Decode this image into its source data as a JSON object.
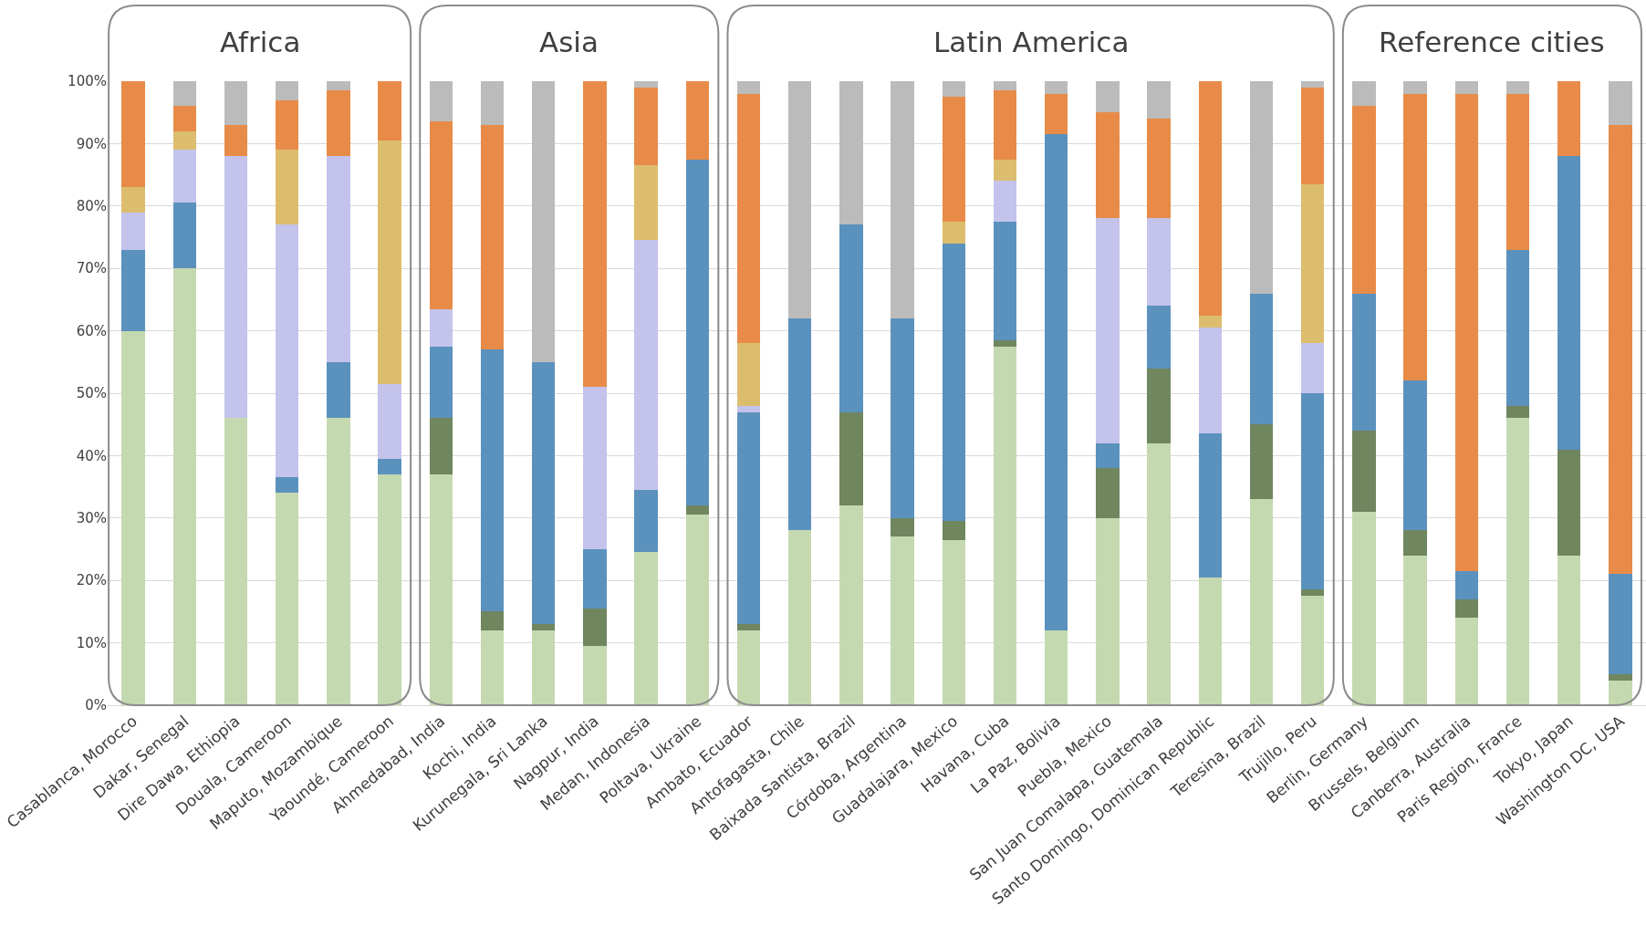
{
  "chart_data": {
    "type": "bar",
    "stacked": true,
    "categories": [
      "Casablanca, Morocco",
      "Dakar, Senegal",
      "Dire Dawa, Ethiopia",
      "Douala, Cameroon",
      "Maputo, Mozambique",
      "Yaoundé, Cameroon",
      "Ahmedabad, India",
      "Kochi, India",
      "Kurunegala, Sri Lanka",
      "Nagpur, India",
      "Medan, Indonesia",
      "Poltava, Ukraine",
      "Ambato, Ecuador",
      "Antofagasta, Chile",
      "Baixada Santista, Brazil",
      "Córdoba, Argentina",
      "Guadalajara, Mexico",
      "Havana, Cuba",
      "La Paz, Bolivia",
      "Puebla, Mexico",
      "San Juan Comalapa, Guatemala",
      "Santo Domingo, Dominican Republic",
      "Teresina, Brazil",
      "Trujillo, Peru",
      "Berlin, Germany",
      "Brussels, Belgium",
      "Canberra, Australia",
      "Paris Region, France",
      "Tokyo, Japan",
      "Washington DC, USA"
    ],
    "series": [
      {
        "color": "#c5d9b0",
        "values": [
          60,
          70,
          46,
          34,
          46,
          37,
          37,
          12,
          12,
          9.5,
          24.5,
          30.5,
          12,
          28,
          32,
          27,
          26.5,
          57.5,
          12,
          30,
          42,
          20.5,
          33,
          17.5,
          31,
          24,
          14,
          46,
          24,
          4
        ]
      },
      {
        "color": "#6f865f",
        "values": [
          0,
          0,
          0,
          0,
          0,
          0,
          9,
          3,
          1,
          6,
          0,
          1.5,
          1,
          0,
          15,
          3,
          3,
          1,
          0,
          8,
          12,
          0,
          12,
          1,
          13,
          4,
          3,
          2,
          17,
          1
        ]
      },
      {
        "color": "#5b91bd",
        "values": [
          13,
          10.5,
          0,
          2.5,
          9,
          2.5,
          11.5,
          42,
          42,
          9.5,
          10,
          55.5,
          34,
          34,
          30,
          32,
          44.5,
          19,
          79.5,
          4,
          10,
          23,
          21,
          31.5,
          22,
          24,
          4.5,
          25,
          47,
          16
        ]
      },
      {
        "color": "#c4c3ec",
        "values": [
          6,
          8.5,
          42,
          40.5,
          33,
          12,
          6,
          0,
          0,
          26,
          40,
          0,
          1,
          0,
          0,
          0,
          0,
          6.5,
          0,
          36,
          14,
          17,
          0,
          8,
          0,
          0,
          0,
          0,
          0,
          0
        ]
      },
      {
        "color": "#dcbd6e",
        "values": [
          4,
          3,
          0,
          12,
          0,
          39,
          0,
          0,
          0,
          0,
          12,
          0,
          10,
          0,
          0,
          0,
          3.5,
          3.5,
          0,
          0,
          0,
          2,
          0,
          25.5,
          0,
          0,
          0,
          0,
          0,
          0
        ]
      },
      {
        "color": "#e88b48",
        "values": [
          17,
          4,
          5,
          8,
          10.5,
          9.5,
          30,
          36,
          0,
          49,
          12.5,
          12.5,
          40,
          0,
          0,
          0,
          20,
          11,
          6.5,
          17,
          16,
          37.5,
          0,
          15.5,
          30,
          46,
          76.5,
          25,
          12,
          72
        ]
      },
      {
        "color": "#bbbbbb",
        "values": [
          0,
          4,
          7,
          3,
          1.5,
          0,
          6.5,
          7,
          45,
          0,
          1,
          0,
          2,
          38,
          23,
          38,
          2.5,
          1.5,
          2,
          5,
          6,
          0,
          34,
          1,
          4,
          2,
          2,
          2,
          0,
          7
        ]
      }
    ],
    "ylim": [
      0,
      100
    ],
    "yticks": [
      {
        "value": 0,
        "label": "0%"
      },
      {
        "value": 10,
        "label": "10%"
      },
      {
        "value": 20,
        "label": "20%"
      },
      {
        "value": 30,
        "label": "30%"
      },
      {
        "value": 40,
        "label": "40%"
      },
      {
        "value": 50,
        "label": "50%"
      },
      {
        "value": 60,
        "label": "60%"
      },
      {
        "value": 70,
        "label": "70%"
      },
      {
        "value": 80,
        "label": "80%"
      },
      {
        "value": 90,
        "label": "90%"
      },
      {
        "value": 100,
        "label": "100%"
      }
    ],
    "grid": "y",
    "annotations": [
      "Africa",
      "Asia",
      "Latin America",
      "Reference cities"
    ]
  }
}
